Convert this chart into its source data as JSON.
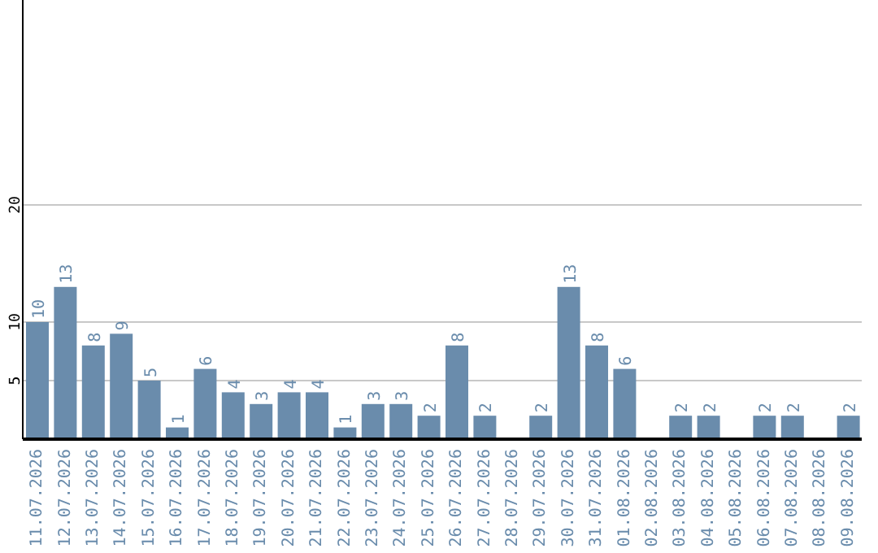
{
  "chart_data": {
    "type": "bar",
    "categories": [
      "11.07.2026",
      "12.07.2026",
      "13.07.2026",
      "14.07.2026",
      "15.07.2026",
      "16.07.2026",
      "17.07.2026",
      "18.07.2026",
      "19.07.2026",
      "20.07.2026",
      "21.07.2026",
      "22.07.2026",
      "23.07.2026",
      "24.07.2026",
      "25.07.2026",
      "26.07.2026",
      "27.07.2026",
      "28.07.2026",
      "29.07.2026",
      "30.07.2026",
      "31.07.2026",
      "01.08.2026",
      "02.08.2026",
      "03.08.2026",
      "04.08.2026",
      "05.08.2026",
      "06.08.2026",
      "07.08.2026",
      "08.08.2026",
      "09.08.2026"
    ],
    "values": [
      10,
      13,
      8,
      9,
      5,
      1,
      6,
      4,
      3,
      4,
      4,
      1,
      3,
      3,
      2,
      8,
      2,
      0,
      2,
      13,
      8,
      6,
      0,
      2,
      2,
      0,
      2,
      2,
      0,
      2
    ],
    "value_labels": [
      "10",
      "13",
      "8",
      "9",
      "5",
      "1",
      "6",
      "4",
      "3",
      "4",
      "4",
      "1",
      "3",
      "3",
      "2",
      "8",
      "2",
      null,
      "2",
      "13",
      "8",
      "6",
      null,
      "2",
      "2",
      null,
      "2",
      "2",
      null,
      "2"
    ],
    "color": "#6a8cac",
    "ylim": [
      0,
      37.5
    ],
    "yticks": [
      5,
      10,
      20
    ],
    "grid": "y"
  }
}
